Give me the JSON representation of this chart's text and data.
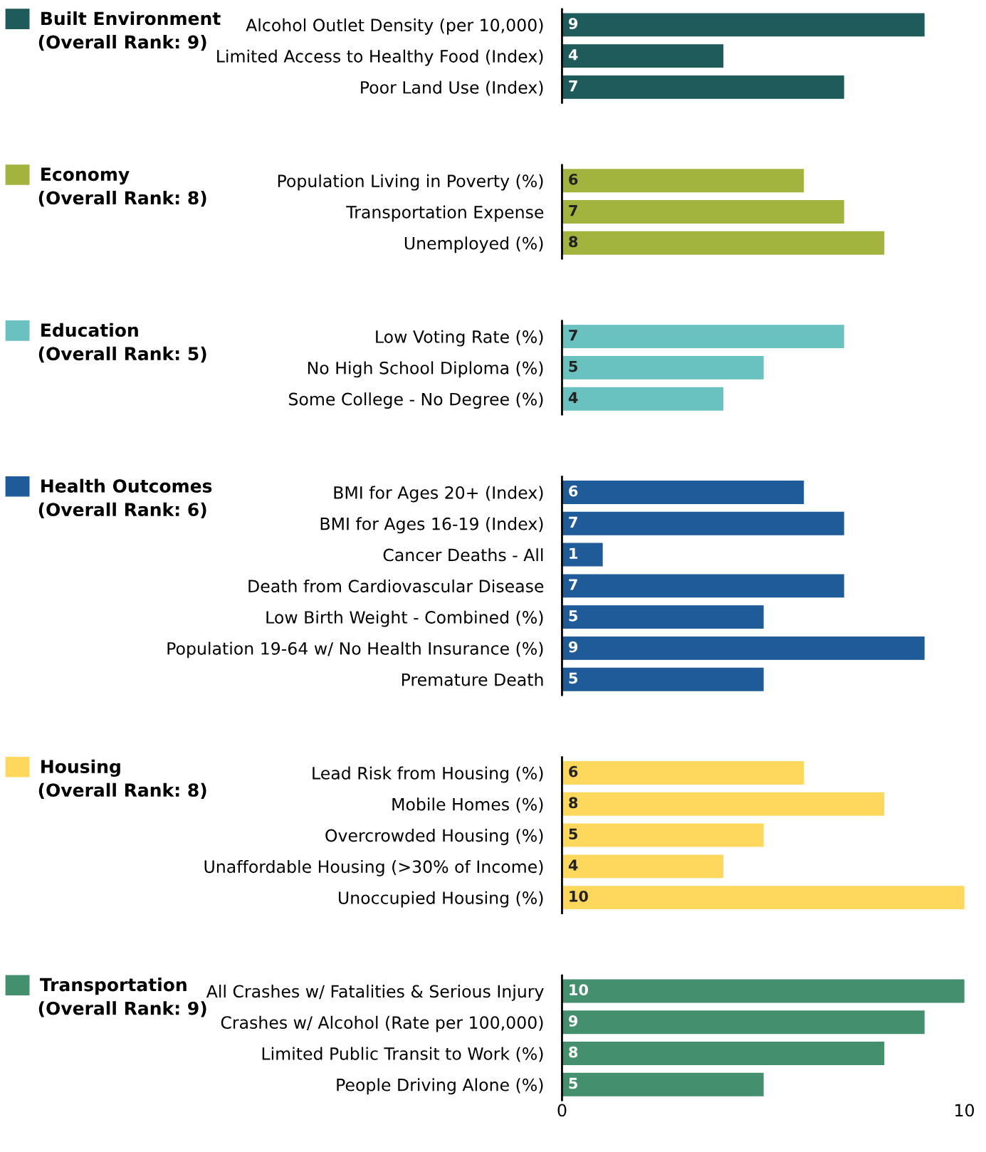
{
  "chart_data": [
    {
      "type": "bar",
      "orientation": "horizontal",
      "subtitle": "(Overall Rank: 9)",
      "categories": [
        "Alcohol Outlet Density (per 10,000)",
        "Limited Access to Healthy Food (Index)",
        "Poor Land Use (Index)"
      ],
      "series": [
        {
          "name": "Built Environment",
          "color": "#1e5b5a",
          "values": [
            9,
            4,
            7
          ]
        }
      ],
      "xlim": [
        0,
        10
      ],
      "xticks": [
        0,
        10
      ],
      "tick_labels": "y",
      "data_labels": true,
      "legend": "left"
    },
    {
      "type": "bar",
      "orientation": "horizontal",
      "subtitle": "(Overall Rank: 8)",
      "categories": [
        "Population Living in Poverty (%)",
        "Transportation Expense",
        "Unemployed (%)"
      ],
      "series": [
        {
          "name": "Economy",
          "color": "#a2b43e",
          "values": [
            6,
            7,
            8
          ]
        }
      ],
      "xlim": [
        0,
        10
      ],
      "xticks": [
        0,
        10
      ],
      "tick_labels": "y",
      "data_labels": true,
      "legend": "left"
    },
    {
      "type": "bar",
      "orientation": "horizontal",
      "subtitle": "(Overall Rank: 5)",
      "categories": [
        "Low Voting Rate (%)",
        "No High School Diploma (%)",
        "Some College - No Degree (%)"
      ],
      "series": [
        {
          "name": "Education",
          "color": "#69c1c0",
          "values": [
            7,
            5,
            4
          ]
        }
      ],
      "xlim": [
        0,
        10
      ],
      "xticks": [
        0,
        10
      ],
      "tick_labels": "y",
      "data_labels": true,
      "legend": "left"
    },
    {
      "type": "bar",
      "orientation": "horizontal",
      "subtitle": "(Overall Rank: 6)",
      "categories": [
        "BMI for Ages 20+ (Index)",
        "BMI for Ages 16-19 (Index)",
        "Cancer Deaths - All",
        "Death from Cardiovascular Disease",
        "Low Birth Weight - Combined (%)",
        "Population 19-64 w/ No Health Insurance (%)",
        "Premature Death"
      ],
      "series": [
        {
          "name": "Health Outcomes",
          "color": "#1f5a99",
          "values": [
            6,
            7,
            1,
            7,
            5,
            9,
            5
          ]
        }
      ],
      "xlim": [
        0,
        10
      ],
      "xticks": [
        0,
        10
      ],
      "tick_labels": "y",
      "data_labels": true,
      "legend": "left"
    },
    {
      "type": "bar",
      "orientation": "horizontal",
      "subtitle": "(Overall Rank: 8)",
      "categories": [
        "Lead Risk from Housing (%)",
        "Mobile Homes (%)",
        "Overcrowded Housing (%)",
        "Unaffordable Housing (>30% of Income)",
        "Unoccupied Housing (%)"
      ],
      "series": [
        {
          "name": "Housing",
          "color": "#fdd85d",
          "values": [
            6,
            8,
            5,
            4,
            10
          ]
        }
      ],
      "xlim": [
        0,
        10
      ],
      "xticks": [
        0,
        10
      ],
      "tick_labels": "y",
      "data_labels": true,
      "legend": "left"
    },
    {
      "type": "bar",
      "orientation": "horizontal",
      "subtitle": "(Overall Rank: 9)",
      "categories": [
        "All Crashes w/ Fatalities & Serious Injury",
        "Crashes w/ Alcohol (Rate per 100,000)",
        "Limited Public Transit to Work (%)",
        "People Driving Alone (%)"
      ],
      "series": [
        {
          "name": "Transportation",
          "color": "#44906e",
          "values": [
            10,
            9,
            8,
            5
          ]
        }
      ],
      "xlim": [
        0,
        10
      ],
      "xticks": [
        0,
        10
      ],
      "data_labels": true,
      "legend": "left"
    }
  ]
}
